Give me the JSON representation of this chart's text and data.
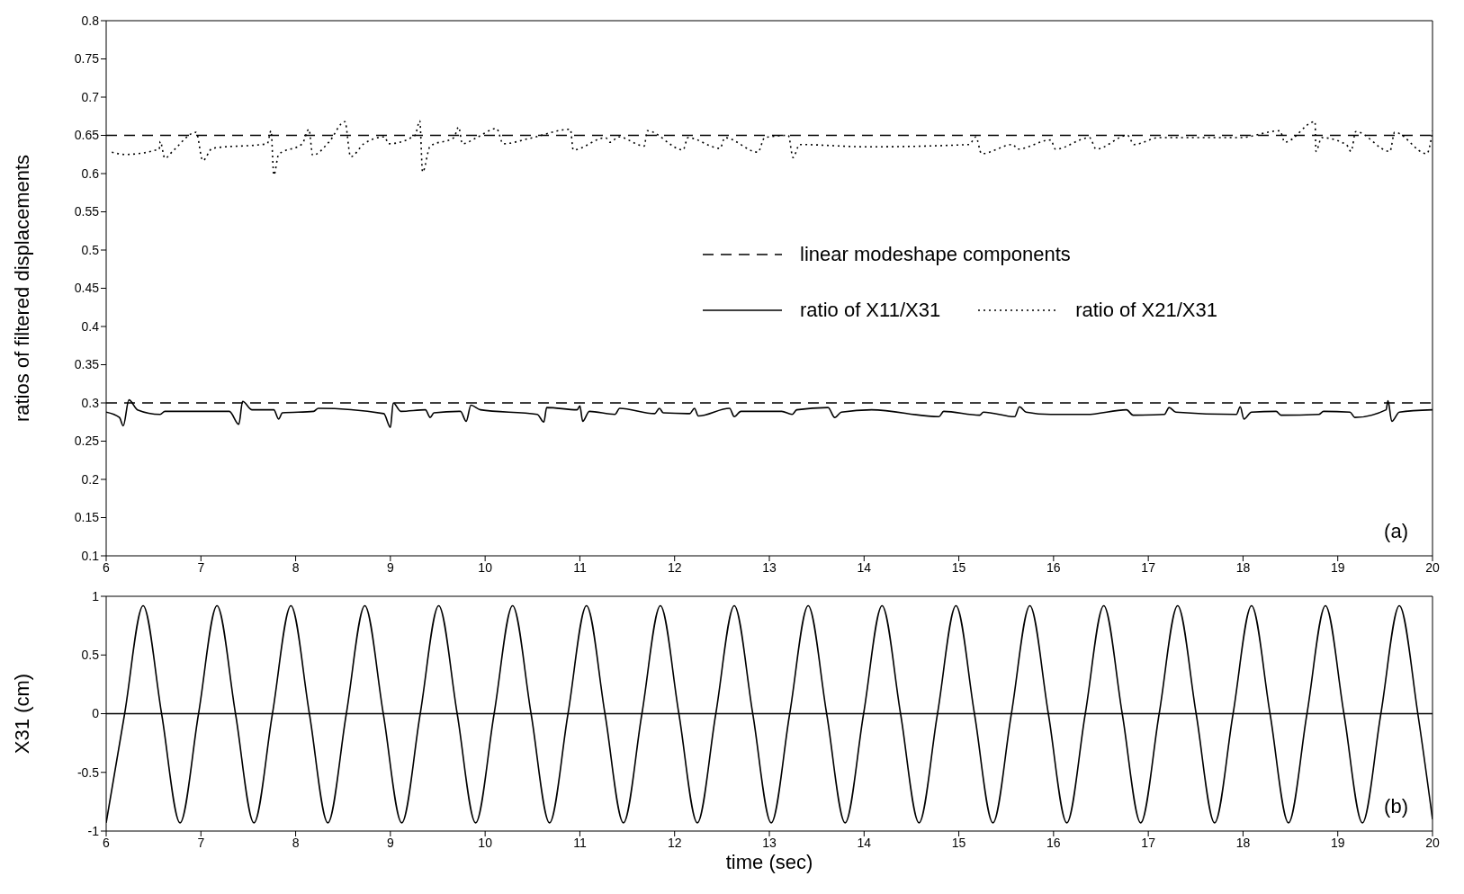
{
  "chart_data": [
    {
      "type": "line",
      "ylabel": "ratios of filtered displacements",
      "xlim": [
        6,
        20
      ],
      "xticks": [
        6,
        7,
        8,
        9,
        10,
        11,
        12,
        13,
        14,
        15,
        16,
        17,
        18,
        19,
        20
      ],
      "ylim": [
        0.1,
        0.8
      ],
      "yticks": [
        0.1,
        0.15,
        0.2,
        0.25,
        0.3,
        0.35,
        0.4,
        0.45,
        0.5,
        0.55,
        0.6,
        0.65,
        0.7,
        0.75,
        0.8
      ],
      "legend": "right",
      "annotations": [
        "(a)"
      ],
      "series": [
        {
          "name": "linear modeshape components",
          "color": "#000000",
          "line_style": "dashed",
          "x": [
            6,
            20
          ],
          "values": [
            0.65,
            0.65
          ]
        },
        {
          "color": "#000000",
          "line_style": "dashed",
          "x": [
            6,
            20
          ],
          "values": [
            0.3,
            0.3
          ]
        },
        {
          "name": "ratio of X11/X31",
          "color": "#000000",
          "line_style": "solid",
          "x": [
            6,
            6.14,
            6.18,
            6.24,
            6.33,
            6.57,
            6.62,
            7.3,
            7.4,
            7.44,
            7.54,
            7.77,
            7.82,
            7.86,
            8.19,
            8.24,
            8.93,
            9,
            9.03,
            9.11,
            9.37,
            9.42,
            9.46,
            9.74,
            9.8,
            9.85,
            9.95,
            10.55,
            10.62,
            10.65,
            10.97,
            11,
            11.03,
            11.1,
            11.37,
            11.42,
            11.79,
            11.84,
            11.88,
            12.16,
            12.21,
            12.25,
            12.58,
            12.63,
            12.7,
            13.13,
            13.24,
            13.29,
            13.62,
            13.69,
            13.76,
            14.08,
            14.79,
            14.84,
            15.22,
            15.26,
            15.59,
            15.64,
            15.71,
            15.97,
            16.35,
            16.77,
            16.84,
            17.17,
            17.22,
            17.29,
            17.93,
            17.97,
            18.01,
            18.09,
            18.35,
            18.4,
            18.8,
            18.85,
            19.13,
            19.18,
            19.51,
            19.53,
            19.57,
            19.65,
            20
          ],
          "values": [
            0.288,
            0.281,
            0.27,
            0.304,
            0.291,
            0.285,
            0.289,
            0.289,
            0.272,
            0.302,
            0.291,
            0.291,
            0.279,
            0.287,
            0.289,
            0.293,
            0.286,
            0.268,
            0.3,
            0.289,
            0.291,
            0.281,
            0.287,
            0.289,
            0.276,
            0.297,
            0.291,
            0.285,
            0.275,
            0.294,
            0.291,
            0.296,
            0.276,
            0.289,
            0.285,
            0.293,
            0.286,
            0.293,
            0.287,
            0.286,
            0.293,
            0.283,
            0.293,
            0.282,
            0.289,
            0.289,
            0.285,
            0.291,
            0.294,
            0.281,
            0.288,
            0.291,
            0.282,
            0.289,
            0.284,
            0.288,
            0.282,
            0.295,
            0.288,
            0.285,
            0.285,
            0.291,
            0.284,
            0.285,
            0.294,
            0.288,
            0.285,
            0.295,
            0.279,
            0.288,
            0.289,
            0.284,
            0.285,
            0.289,
            0.288,
            0.281,
            0.291,
            0.303,
            0.276,
            0.288,
            0.291
          ]
        },
        {
          "name": "ratio of X21/X31",
          "color": "#000000",
          "line_style": "dotted",
          "x": [
            6.06,
            6.2,
            6.56,
            6.57,
            6.62,
            6.7,
            6.95,
            7.02,
            7.12,
            7.7,
            7.74,
            7.77,
            7.82,
            8.07,
            8.14,
            8.18,
            8.35,
            8.52,
            8.58,
            8.72,
            8.94,
            8.98,
            9.26,
            9.31,
            9.34,
            9.42,
            9.67,
            9.72,
            9.76,
            9.91,
            10.12,
            10.19,
            10.47,
            10.9,
            10.93,
            11.27,
            11.32,
            11.41,
            11.68,
            11.71,
            12.09,
            12.14,
            12.48,
            12.53,
            12.88,
            12.95,
            13.2,
            13.25,
            13.32,
            14.03,
            15.11,
            15.18,
            15.24,
            15.57,
            15.62,
            15.97,
            16.02,
            16.38,
            16.45,
            16.78,
            16.85,
            17.11,
            17.96,
            18.39,
            18.44,
            18.76,
            18.77,
            18.83,
            19.09,
            19.14,
            19.19,
            19.55,
            19.6,
            19.94,
            20
          ],
          "values": [
            0.628,
            0.625,
            0.632,
            0.642,
            0.62,
            0.629,
            0.654,
            0.617,
            0.633,
            0.639,
            0.656,
            0.598,
            0.625,
            0.639,
            0.658,
            0.624,
            0.641,
            0.668,
            0.622,
            0.639,
            0.648,
            0.639,
            0.65,
            0.669,
            0.602,
            0.636,
            0.647,
            0.661,
            0.639,
            0.647,
            0.659,
            0.639,
            0.646,
            0.658,
            0.631,
            0.647,
            0.641,
            0.648,
            0.636,
            0.656,
            0.631,
            0.647,
            0.633,
            0.647,
            0.628,
            0.647,
            0.65,
            0.621,
            0.638,
            0.635,
            0.638,
            0.648,
            0.626,
            0.638,
            0.632,
            0.644,
            0.632,
            0.647,
            0.632,
            0.65,
            0.638,
            0.647,
            0.647,
            0.656,
            0.641,
            0.668,
            0.629,
            0.647,
            0.638,
            0.629,
            0.655,
            0.629,
            0.654,
            0.626,
            0.656
          ]
        }
      ]
    },
    {
      "type": "line",
      "xlabel": "time (sec)",
      "ylabel": "X31 (cm)",
      "xlim": [
        6,
        20
      ],
      "xticks": [
        6,
        7,
        8,
        9,
        10,
        11,
        12,
        13,
        14,
        15,
        16,
        17,
        18,
        19,
        20
      ],
      "ylim": [
        -1,
        1
      ],
      "yticks": [
        -1,
        -0.5,
        0,
        0.5,
        1
      ],
      "annotations": [
        "(b)"
      ],
      "ref_lines": [
        {
          "axis": "y",
          "value": 0,
          "color": "#000000"
        }
      ],
      "series": [
        {
          "color": "#000000",
          "line_style": "solid",
          "x": [
            6,
            6.195,
            6.39,
            6.585,
            6.78,
            6.975,
            7.17,
            7.365,
            7.56,
            7.755,
            7.95,
            8.145,
            8.34,
            8.535,
            8.73,
            8.925,
            9.12,
            9.315,
            9.51,
            9.705,
            9.9,
            10.095,
            10.29,
            10.485,
            10.68,
            10.875,
            11.07,
            11.265,
            11.46,
            11.655,
            11.85,
            12.045,
            12.24,
            12.435,
            12.63,
            12.825,
            13.02,
            13.215,
            13.41,
            13.605,
            13.8,
            13.995,
            14.19,
            14.385,
            14.58,
            14.775,
            14.97,
            15.165,
            15.36,
            15.555,
            15.75,
            15.945,
            16.14,
            16.335,
            16.53,
            16.725,
            16.92,
            17.115,
            17.31,
            17.505,
            17.7,
            17.895,
            18.09,
            18.285,
            18.48,
            18.675,
            18.87,
            19.065,
            19.26,
            19.455,
            19.65,
            19.845,
            20
          ],
          "values": [
            -0.93,
            0,
            0.92,
            0,
            -0.93,
            0,
            0.92,
            0,
            -0.93,
            0,
            0.92,
            0,
            -0.93,
            0,
            0.92,
            0,
            -0.93,
            0,
            0.92,
            0,
            -0.93,
            0,
            0.92,
            0,
            -0.93,
            0,
            0.92,
            0,
            -0.93,
            0,
            0.92,
            0,
            -0.93,
            0,
            0.92,
            0,
            -0.93,
            0,
            0.92,
            0,
            -0.93,
            0,
            0.92,
            0,
            -0.93,
            0,
            0.92,
            0,
            -0.93,
            0,
            0.92,
            0,
            -0.93,
            0,
            0.92,
            0,
            -0.93,
            0,
            0.92,
            0,
            -0.93,
            0,
            0.92,
            0,
            -0.93,
            0,
            0.92,
            0,
            -0.93,
            0,
            0.92,
            0,
            -0.9
          ]
        }
      ]
    }
  ]
}
